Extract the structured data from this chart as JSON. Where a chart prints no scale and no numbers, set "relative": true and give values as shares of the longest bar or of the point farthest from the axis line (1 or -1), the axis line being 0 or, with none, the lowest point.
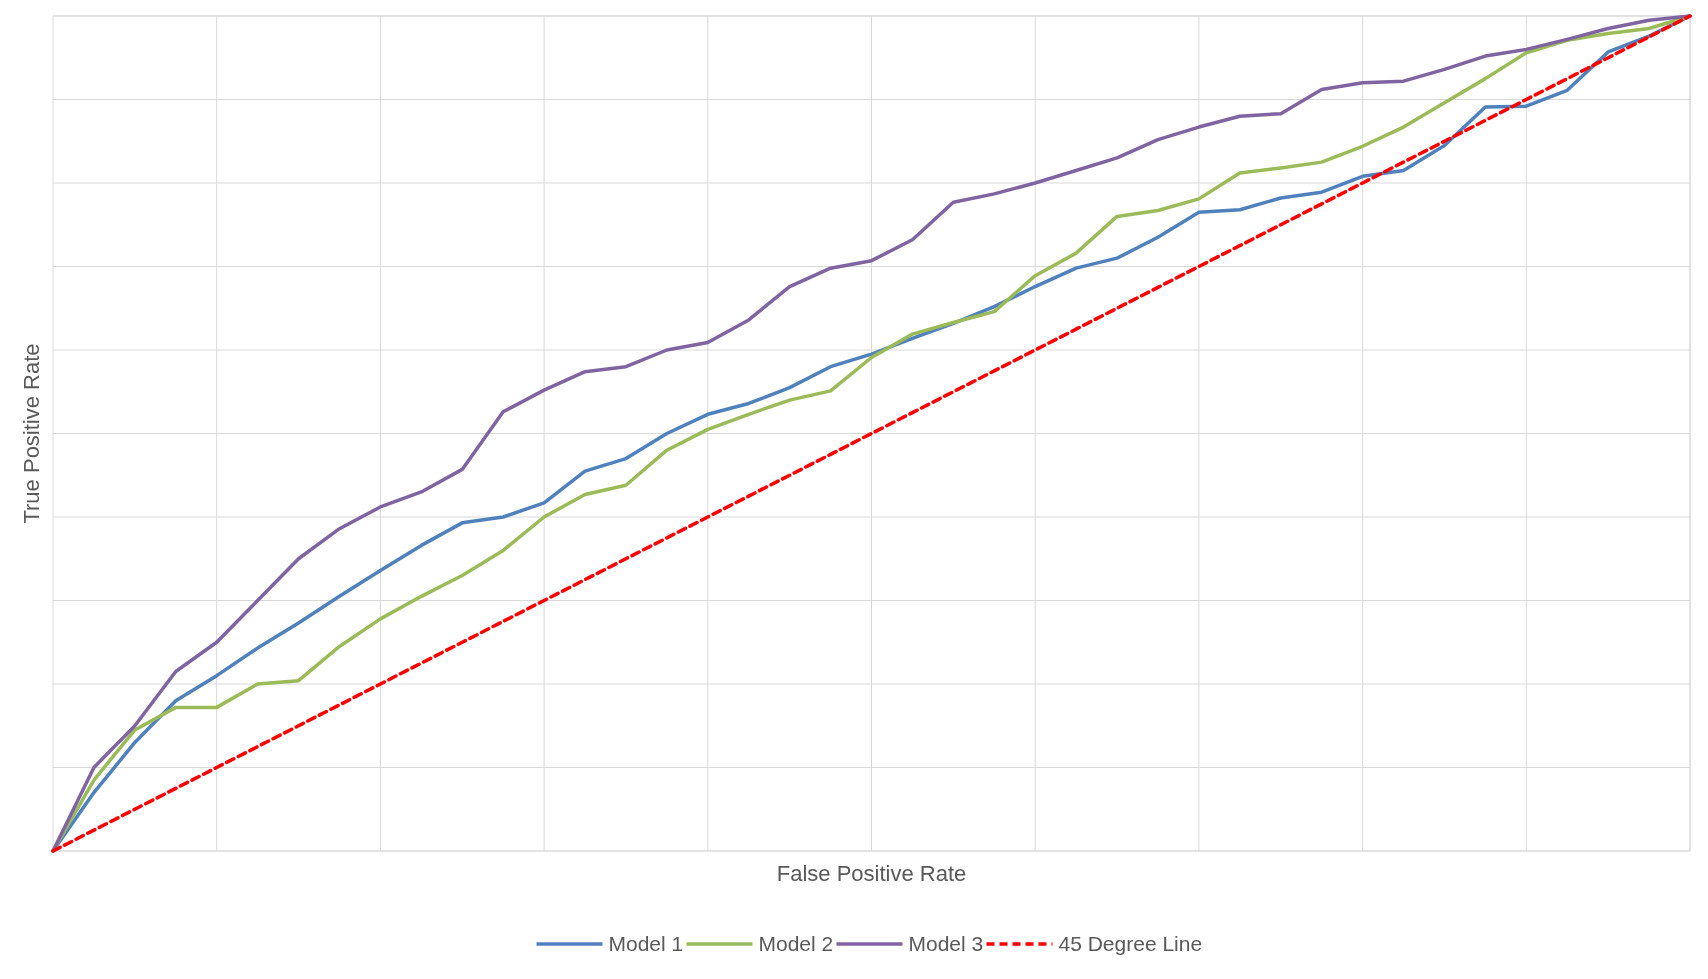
{
  "chart_data": {
    "type": "line",
    "relative": true,
    "xlabel": "False Positive Rate",
    "ylabel": "True Positive Rate",
    "grid": true,
    "legend": "bottom",
    "categories": [
      null,
      null,
      null,
      null,
      null,
      null,
      null,
      null,
      null,
      null,
      null,
      null,
      null,
      null,
      null,
      null,
      null,
      null,
      null,
      null,
      null,
      null,
      null,
      null,
      null,
      null,
      null,
      null,
      null,
      null,
      null,
      null,
      null,
      null,
      null,
      null,
      null,
      null,
      null,
      null,
      null
    ],
    "series": [
      {
        "name": "Model 1",
        "color": "#4f81bd",
        "values": [
          0,
          0.07,
          0.13,
          0.18,
          0.21,
          0.243,
          0.273,
          0.305,
          0.336,
          0.366,
          0.393,
          0.4,
          0.417,
          0.455,
          0.47,
          0.5,
          0.523,
          0.536,
          0.555,
          0.58,
          0.595,
          0.614,
          0.632,
          0.652,
          0.676,
          0.698,
          0.71,
          0.735,
          0.765,
          0.768,
          0.782,
          0.789,
          0.808,
          0.815,
          0.845,
          0.891,
          0.892,
          0.911,
          0.957,
          0.976,
          1
        ]
      },
      {
        "name": "Model 2",
        "color": "#9bbb59",
        "values": [
          0,
          0.085,
          0.145,
          0.172,
          0.172,
          0.2,
          0.204,
          0.245,
          0.278,
          0.305,
          0.33,
          0.36,
          0.4,
          0.427,
          0.438,
          0.48,
          0.505,
          0.523,
          0.54,
          0.551,
          0.591,
          0.619,
          0.633,
          0.646,
          0.689,
          0.716,
          0.76,
          0.767,
          0.781,
          0.812,
          0.818,
          0.825,
          0.844,
          0.867,
          0.896,
          0.925,
          0.956,
          0.971,
          0.979,
          0.985,
          1
        ]
      },
      {
        "name": "Model 3",
        "color": "#8064a2",
        "values": [
          0,
          0.1,
          0.15,
          0.215,
          0.25,
          0.3,
          0.35,
          0.386,
          0.412,
          0.43,
          0.457,
          0.526,
          0.552,
          0.574,
          0.58,
          0.6,
          0.609,
          0.636,
          0.676,
          0.698,
          0.707,
          0.732,
          0.777,
          0.787,
          0.8,
          0.815,
          0.83,
          0.852,
          0.867,
          0.88,
          0.883,
          0.912,
          0.92,
          0.922,
          0.936,
          0.952,
          0.96,
          0.972,
          0.985,
          0.995,
          1
        ]
      },
      {
        "name": "45 Degree Line",
        "color": "#ff0000",
        "line_style": "dashed",
        "values": [
          0,
          0.025,
          0.05,
          0.075,
          0.1,
          0.125,
          0.15,
          0.175,
          0.2,
          0.225,
          0.25,
          0.275,
          0.3,
          0.325,
          0.35,
          0.375,
          0.4,
          0.425,
          0.45,
          0.475,
          0.5,
          0.525,
          0.55,
          0.575,
          0.6,
          0.625,
          0.65,
          0.675,
          0.7,
          0.725,
          0.75,
          0.775,
          0.8,
          0.825,
          0.85,
          0.875,
          0.9,
          0.925,
          0.95,
          0.975,
          1
        ]
      }
    ]
  }
}
